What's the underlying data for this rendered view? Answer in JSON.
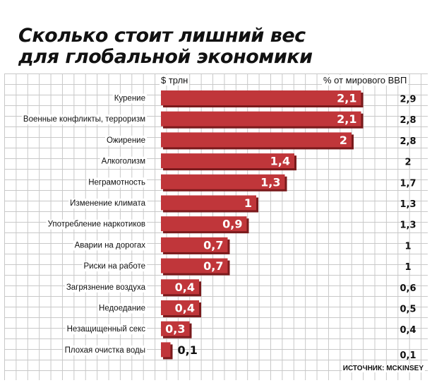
{
  "title_line1": "Сколько стоит лишний вес",
  "title_line2": "для глобальной экономики",
  "unit_left": "$ трлн",
  "unit_right": "% от мирового ВВП",
  "source": "ИСТОЧНИК: MCKINSEY",
  "colors": {
    "bar": "#c0363a",
    "bar_shadow": "#7a1a1c",
    "value_light": "#ffffff",
    "value_dark": "#111111"
  },
  "chart_data": {
    "type": "bar",
    "orientation": "horizontal",
    "categories": [
      "Курение",
      "Военные конфликты, терроризм",
      "Ожирение",
      "Алкоголизм",
      "Неграмотность",
      "Изменение климата",
      "Употребление наркотиков",
      "Аварии на дорогах",
      "Риски на работе",
      "Загрязнение воздуха",
      "Недоедание",
      "Незащищенный секс",
      "Плохая очистка воды"
    ],
    "values": [
      2.1,
      2.1,
      2,
      1.4,
      1.3,
      1,
      0.9,
      0.7,
      0.7,
      0.4,
      0.4,
      0.3,
      0.1
    ],
    "value_labels": [
      "2,1",
      "2,1",
      "2",
      "1,4",
      "1,3",
      "1",
      "0,9",
      "0,7",
      "0,7",
      "0,4",
      "0,4",
      "0,3",
      "0,1"
    ],
    "gdp_share": [
      2.9,
      2.8,
      2.8,
      2,
      1.7,
      1.3,
      1.3,
      1,
      1,
      0.6,
      0.5,
      0.4,
      0.1
    ],
    "gdp_share_labels": [
      "2,9",
      "2,8",
      "2,8",
      "2",
      "1,7",
      "1,3",
      "1,3",
      "1",
      "1",
      "0,6",
      "0,5",
      "0,4",
      "0,1"
    ],
    "xlabel": "$ трлн",
    "ylabel": ""
  }
}
